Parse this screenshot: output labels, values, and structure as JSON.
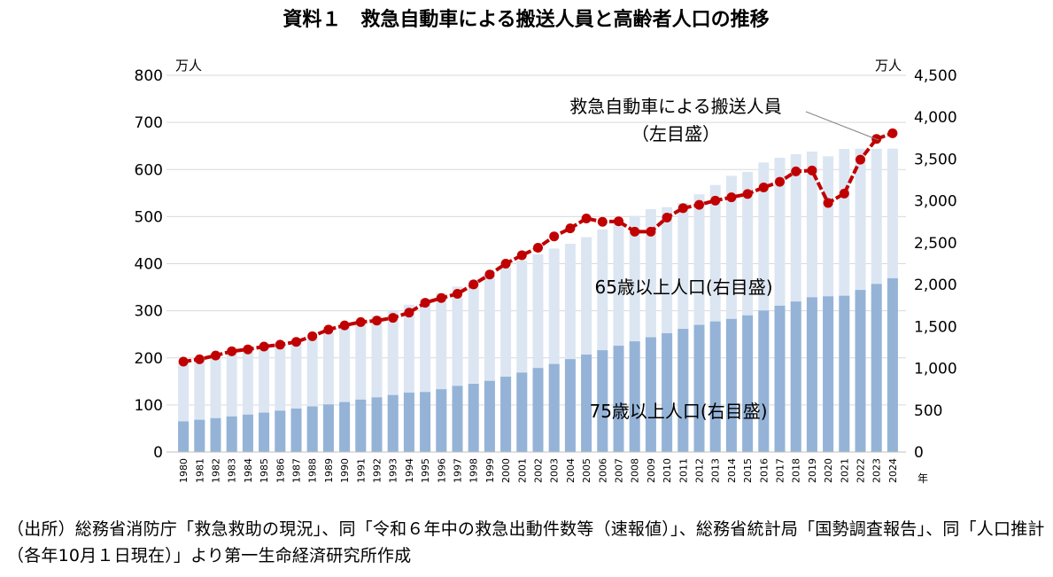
{
  "chart_data": {
    "type": "bar+line",
    "title": "資料１　救急自動車による搬送人員と高齢者人口の推移",
    "y_left_unit": "万人",
    "y_right_unit": "万人",
    "x_unit": "年",
    "y_left_lim": [
      0,
      800
    ],
    "y_right_lim": [
      0,
      4500
    ],
    "y_left_ticks": [
      "0",
      "100",
      "200",
      "300",
      "400",
      "500",
      "600",
      "700",
      "800"
    ],
    "y_right_ticks": [
      "0",
      "500",
      "1,000",
      "1,500",
      "2,000",
      "2,500",
      "3,000",
      "3,500",
      "4,000",
      "4,500"
    ],
    "y_left_tick_values": [
      0,
      100,
      200,
      300,
      400,
      500,
      600,
      700,
      800
    ],
    "y_right_tick_values": [
      0,
      500,
      1000,
      1500,
      2000,
      2500,
      3000,
      3500,
      4000,
      4500
    ],
    "categories": [
      "1980",
      "1981",
      "1982",
      "1983",
      "1984",
      "1985",
      "1986",
      "1987",
      "1988",
      "1989",
      "1990",
      "1991",
      "1992",
      "1993",
      "1994",
      "1995",
      "1996",
      "1997",
      "1998",
      "1999",
      "2000",
      "2001",
      "2002",
      "2003",
      "2004",
      "2005",
      "2006",
      "2007",
      "2008",
      "2009",
      "2010",
      "2011",
      "2012",
      "2013",
      "2014",
      "2015",
      "2016",
      "2017",
      "2018",
      "2019",
      "2020",
      "2021",
      "2022",
      "2023",
      "2024"
    ],
    "series": [
      {
        "name": "65歳以上人口(右目盛)",
        "axis": "right",
        "kind": "bar",
        "color": "#dce6f2",
        "values": [
          1065,
          1100,
          1140,
          1180,
          1220,
          1247,
          1290,
          1330,
          1375,
          1430,
          1490,
          1560,
          1630,
          1690,
          1760,
          1828,
          1900,
          1976,
          2051,
          2119,
          2204,
          2287,
          2363,
          2431,
          2488,
          2567,
          2660,
          2746,
          2822,
          2901,
          2925,
          2975,
          3079,
          3190,
          3300,
          3347,
          3459,
          3515,
          3558,
          3589,
          3533,
          3621,
          3624,
          3623,
          3625
        ]
      },
      {
        "name": "75歳以上人口(右目盛)",
        "axis": "right",
        "kind": "bar",
        "color": "#95b3d7",
        "values": [
          366,
          385,
          405,
          425,
          447,
          471,
          494,
          519,
          545,
          569,
          597,
          626,
          653,
          681,
          710,
          717,
          750,
          790,
          815,
          850,
          900,
          949,
          1004,
          1052,
          1110,
          1164,
          1216,
          1270,
          1322,
          1371,
          1419,
          1471,
          1519,
          1560,
          1590,
          1632,
          1691,
          1748,
          1798,
          1849,
          1860,
          1867,
          1936,
          2008,
          2076
        ]
      },
      {
        "name": "救急自動車による搬送人員",
        "axis": "left",
        "kind": "line",
        "color": "#c00000",
        "values": [
          192,
          197,
          205,
          214,
          218,
          224,
          228,
          234,
          246,
          260,
          269,
          276,
          279,
          285,
          296,
          317,
          327,
          336,
          356,
          377,
          400,
          418,
          434,
          458,
          475,
          496,
          489,
          490,
          468,
          468,
          498,
          518,
          525,
          534,
          541,
          548,
          562,
          574,
          596,
          598,
          529,
          549,
          621,
          665,
          677
        ]
      }
    ],
    "annotations": {
      "line_label": "救急自動車による搬送人員",
      "line_label_axis": "（左目盛）",
      "bar65_label": "65歳以上人口(右目盛)",
      "bar75_label": "75歳以上人口(右目盛)"
    }
  },
  "source_note": "（出所）総務省消防庁「救急救助の現況」、同「令和６年中の救急出動件数等（速報値）」、総務省統計局「国勢調査報告」、同「人口推計（各年10月１日現在）」より第一生命経済研究所作成"
}
